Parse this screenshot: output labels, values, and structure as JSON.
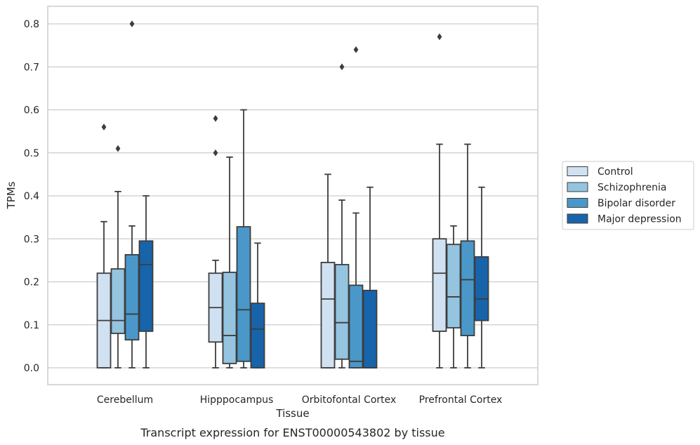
{
  "caption": "Transcript expression for ENST00000543802 by tissue",
  "chart_data": {
    "type": "boxplot",
    "xlabel": "Tissue",
    "ylabel": "TPMs",
    "ylim": [
      -0.04,
      0.84
    ],
    "yticks": [
      0.0,
      0.1,
      0.2,
      0.3,
      0.4,
      0.5,
      0.6,
      0.7,
      0.8
    ],
    "ytick_labels": [
      "0.0",
      "0.1",
      "0.2",
      "0.3",
      "0.4",
      "0.5",
      "0.6",
      "0.7",
      "0.8"
    ],
    "grid": "horizontal",
    "legend_position": "right",
    "categories": [
      "Cerebellum",
      "Hipppocampus",
      "Orbitofontal Cortex",
      "Prefrontal Cortex"
    ],
    "series": [
      {
        "name": "Control",
        "color": "#d0e1f2",
        "boxes": [
          {
            "whislo": 0.0,
            "q1": 0.0,
            "med": 0.11,
            "q3": 0.22,
            "whishi": 0.34,
            "fliers": [
              0.56
            ]
          },
          {
            "whislo": 0.0,
            "q1": 0.06,
            "med": 0.14,
            "q3": 0.22,
            "whishi": 0.25,
            "fliers": [
              0.5,
              0.58
            ]
          },
          {
            "whislo": 0.0,
            "q1": 0.0,
            "med": 0.16,
            "q3": 0.245,
            "whishi": 0.45,
            "fliers": []
          },
          {
            "whislo": 0.0,
            "q1": 0.085,
            "med": 0.22,
            "q3": 0.3,
            "whishi": 0.52,
            "fliers": [
              0.77
            ]
          }
        ]
      },
      {
        "name": "Schizophrenia",
        "color": "#94c4df",
        "boxes": [
          {
            "whislo": 0.0,
            "q1": 0.08,
            "med": 0.11,
            "q3": 0.23,
            "whishi": 0.41,
            "fliers": [
              0.51
            ]
          },
          {
            "whislo": 0.0,
            "q1": 0.01,
            "med": 0.075,
            "q3": 0.222,
            "whishi": 0.49,
            "fliers": []
          },
          {
            "whislo": 0.0,
            "q1": 0.02,
            "med": 0.105,
            "q3": 0.24,
            "whishi": 0.39,
            "fliers": [
              0.7
            ]
          },
          {
            "whislo": 0.0,
            "q1": 0.093,
            "med": 0.165,
            "q3": 0.287,
            "whishi": 0.33,
            "fliers": []
          }
        ]
      },
      {
        "name": "Bipolar disorder",
        "color": "#4a98c9",
        "boxes": [
          {
            "whislo": 0.0,
            "q1": 0.065,
            "med": 0.125,
            "q3": 0.263,
            "whishi": 0.33,
            "fliers": [
              0.8
            ]
          },
          {
            "whislo": 0.0,
            "q1": 0.015,
            "med": 0.135,
            "q3": 0.328,
            "whishi": 0.6,
            "fliers": []
          },
          {
            "whislo": 0.0,
            "q1": 0.0,
            "med": 0.015,
            "q3": 0.192,
            "whishi": 0.36,
            "fliers": [
              0.74
            ]
          },
          {
            "whislo": 0.0,
            "q1": 0.075,
            "med": 0.205,
            "q3": 0.295,
            "whishi": 0.52,
            "fliers": []
          }
        ]
      },
      {
        "name": "Major depression",
        "color": "#1764ab",
        "boxes": [
          {
            "whislo": 0.0,
            "q1": 0.085,
            "med": 0.24,
            "q3": 0.295,
            "whishi": 0.4,
            "fliers": []
          },
          {
            "whislo": 0.0,
            "q1": 0.0,
            "med": 0.09,
            "q3": 0.15,
            "whishi": 0.29,
            "fliers": []
          },
          {
            "whislo": 0.0,
            "q1": 0.0,
            "med": 0.0,
            "q3": 0.18,
            "whishi": 0.42,
            "fliers": []
          },
          {
            "whislo": 0.0,
            "q1": 0.11,
            "med": 0.16,
            "q3": 0.258,
            "whishi": 0.42,
            "fliers": []
          }
        ]
      }
    ]
  }
}
